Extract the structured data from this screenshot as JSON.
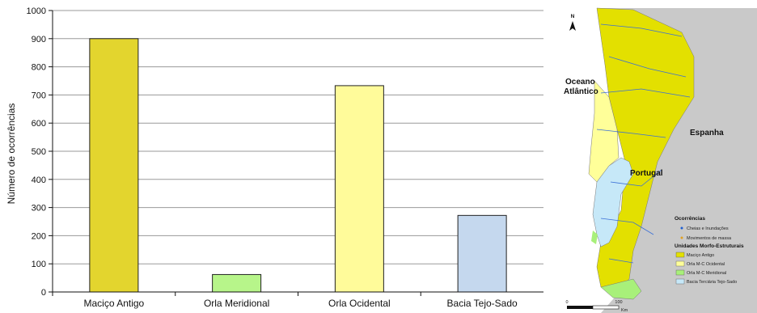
{
  "chart_data": {
    "type": "bar",
    "categories": [
      "Maciço Antigo",
      "Orla Meridional",
      "Orla Ocidental",
      "Bacia Tejo-Sado"
    ],
    "values": [
      900,
      62,
      733,
      272
    ],
    "colors": [
      "#e3d52e",
      "#b7f58a",
      "#fffb9a",
      "#c5d8ee"
    ],
    "ylabel": "Número de ocorrências",
    "xlabel": "",
    "ylim": [
      0,
      1000
    ],
    "yticks": [
      0,
      100,
      200,
      300,
      400,
      500,
      600,
      700,
      800,
      900,
      1000
    ],
    "grid": true,
    "legend": "none"
  },
  "map": {
    "north_label": "N",
    "ocean_label_1": "Oceano",
    "ocean_label_2": "Atlântico",
    "spain_label": "Espanha",
    "portugal_label": "Portugal",
    "legend_title": "Ocorrências",
    "legend_items": [
      {
        "label": "Cheias e Inundações",
        "color": "#1f5fd0"
      },
      {
        "label": "Movimentos de massa",
        "color": "#e0a020"
      }
    ],
    "units_title": "Unidades Morfo-Estruturais",
    "units": [
      {
        "label": "Maciço Antigo",
        "color": "#e3e000"
      },
      {
        "label": "Orla M-C Ocidental",
        "color": "#ffff99"
      },
      {
        "label": "Orla M-C Meridional",
        "color": "#a8f07a"
      },
      {
        "label": "Bacia Terciária Tejo-Sado",
        "color": "#c6e8f8"
      }
    ],
    "scale_zero": "0",
    "scale_hundred": "100",
    "scale_unit": "Km"
  }
}
